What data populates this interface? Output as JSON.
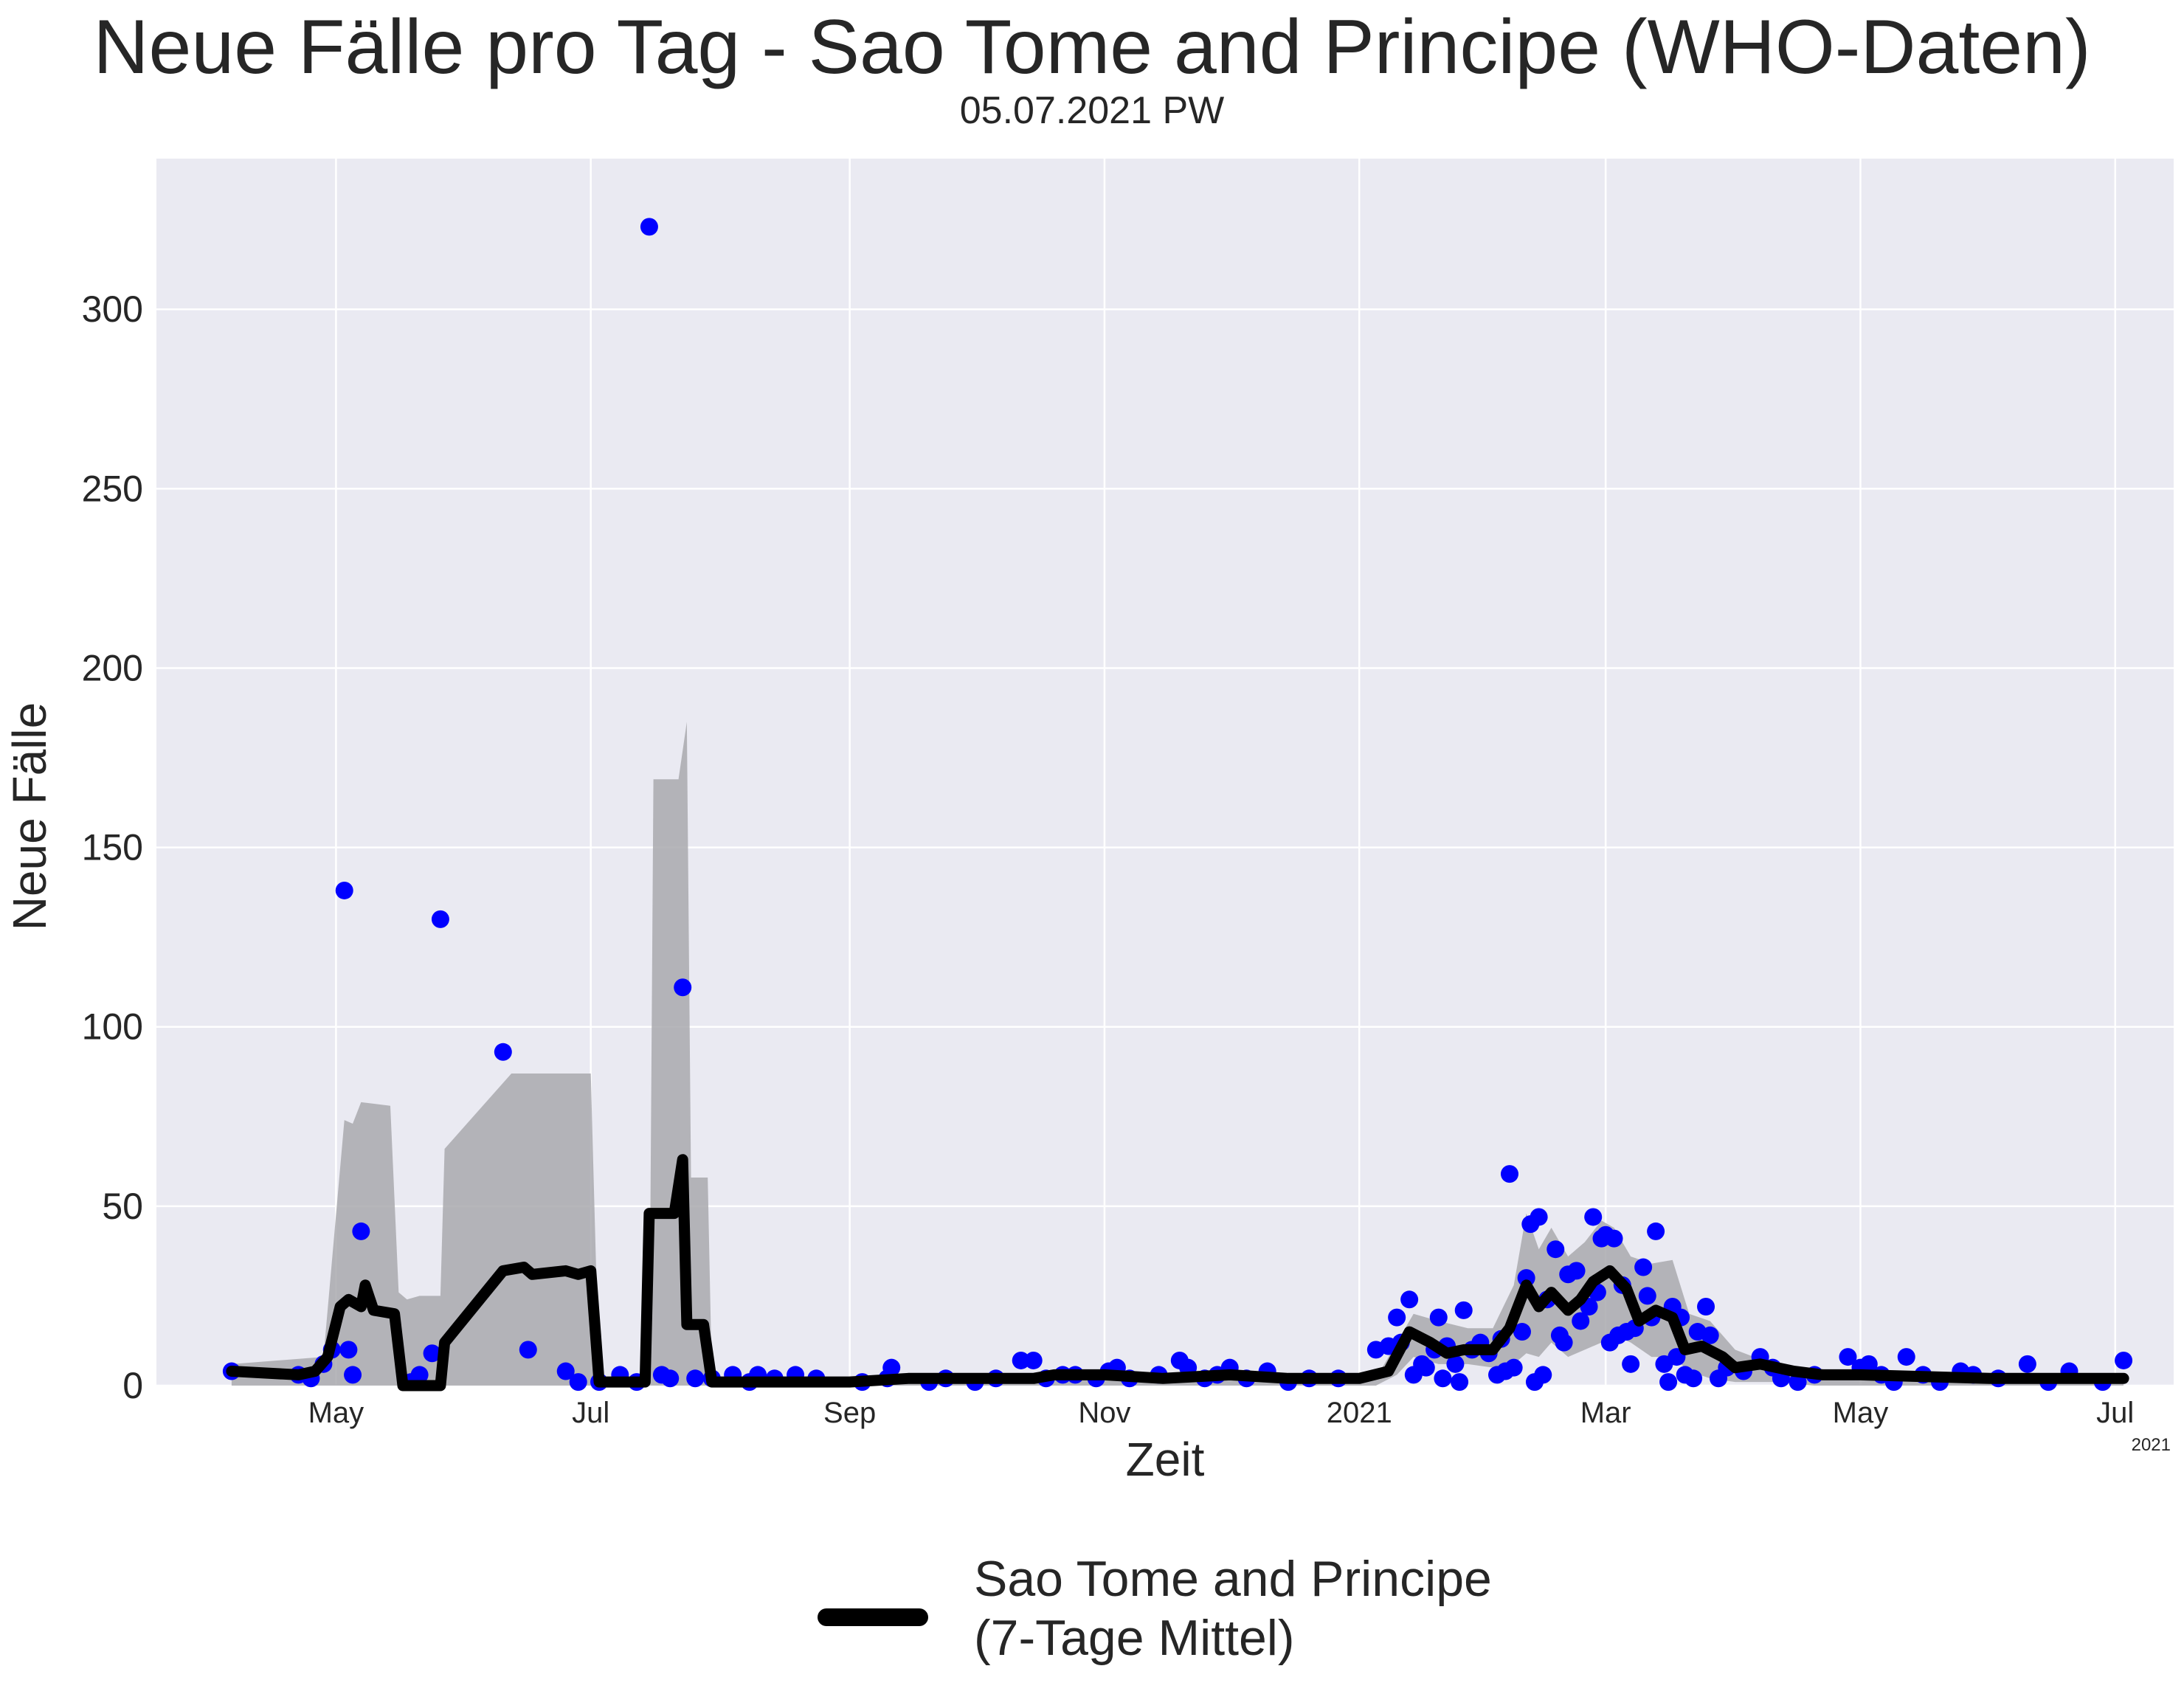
{
  "title": "Neue Fälle pro Tag - Sao Tome and Principe (WHO-Daten)",
  "subtitle": "05.07.2021 PW",
  "colors": {
    "plot_background": "#EAEAF2",
    "grid": "#FFFFFF",
    "points": "#0000FF",
    "line": "#000000",
    "band": "#A9A9AE"
  },
  "chart_data": {
    "type": "line",
    "title": "Neue Fälle pro Tag - Sao Tome and Principe (WHO-Daten)",
    "xlabel": "Zeit",
    "ylabel": "Neue Fälle",
    "x_range": [
      "2020-03-19",
      "2021-07-15"
    ],
    "ylim": [
      0,
      342
    ],
    "yticks": [
      0,
      50,
      100,
      150,
      200,
      250,
      300
    ],
    "xticks": [
      {
        "date": "2020-05-01",
        "label": "May"
      },
      {
        "date": "2020-07-01",
        "label": "Jul"
      },
      {
        "date": "2020-09-01",
        "label": "Sep"
      },
      {
        "date": "2020-11-01",
        "label": "Nov"
      },
      {
        "date": "2021-01-01",
        "label": "2021"
      },
      {
        "date": "2021-03-01",
        "label": "Mar"
      },
      {
        "date": "2021-05-01",
        "label": "May"
      },
      {
        "date": "2021-07-01",
        "label": "Jul"
      }
    ],
    "x_offset_label": "2021",
    "grid": true,
    "legend_position": "bottom-center",
    "series": [
      {
        "name": "Sao Tome and Principe\n(7-Tage Mittel)",
        "kind": "line",
        "points": [
          [
            "2020-04-06",
            4
          ],
          [
            "2020-04-22",
            3
          ],
          [
            "2020-04-26",
            4
          ],
          [
            "2020-04-29",
            8
          ],
          [
            "2020-05-02",
            22
          ],
          [
            "2020-05-04",
            24
          ],
          [
            "2020-05-07",
            22
          ],
          [
            "2020-05-08",
            28
          ],
          [
            "2020-05-10",
            21
          ],
          [
            "2020-05-15",
            20
          ],
          [
            "2020-05-17",
            0
          ],
          [
            "2020-05-26",
            0
          ],
          [
            "2020-05-27",
            12
          ],
          [
            "2020-06-10",
            32
          ],
          [
            "2020-06-15",
            33
          ],
          [
            "2020-06-17",
            31
          ],
          [
            "2020-06-25",
            32
          ],
          [
            "2020-06-28",
            31
          ],
          [
            "2020-07-01",
            32
          ],
          [
            "2020-07-03",
            1
          ],
          [
            "2020-07-14",
            1
          ],
          [
            "2020-07-15",
            48
          ],
          [
            "2020-07-21",
            48
          ],
          [
            "2020-07-23",
            63
          ],
          [
            "2020-07-24",
            17
          ],
          [
            "2020-07-28",
            17
          ],
          [
            "2020-07-30",
            1
          ],
          [
            "2020-09-01",
            1
          ],
          [
            "2020-09-15",
            2
          ],
          [
            "2020-10-15",
            2
          ],
          [
            "2020-10-20",
            3
          ],
          [
            "2020-11-01",
            3
          ],
          [
            "2020-11-15",
            2
          ],
          [
            "2020-12-01",
            3
          ],
          [
            "2020-12-15",
            2
          ],
          [
            "2021-01-01",
            2
          ],
          [
            "2021-01-08",
            4
          ],
          [
            "2021-01-13",
            15
          ],
          [
            "2021-01-18",
            12
          ],
          [
            "2021-01-22",
            9
          ],
          [
            "2021-01-26",
            10
          ],
          [
            "2021-02-02",
            10
          ],
          [
            "2021-02-06",
            16
          ],
          [
            "2021-02-10",
            28
          ],
          [
            "2021-02-13",
            22
          ],
          [
            "2021-02-16",
            26
          ],
          [
            "2021-02-20",
            21
          ],
          [
            "2021-02-23",
            24
          ],
          [
            "2021-02-26",
            29
          ],
          [
            "2021-03-02",
            32
          ],
          [
            "2021-03-06",
            27
          ],
          [
            "2021-03-09",
            18
          ],
          [
            "2021-03-13",
            21
          ],
          [
            "2021-03-17",
            19
          ],
          [
            "2021-03-20",
            10
          ],
          [
            "2021-03-24",
            11
          ],
          [
            "2021-03-29",
            8
          ],
          [
            "2021-04-01",
            5
          ],
          [
            "2021-04-07",
            6
          ],
          [
            "2021-04-15",
            4
          ],
          [
            "2021-04-22",
            3
          ],
          [
            "2021-05-01",
            3
          ],
          [
            "2021-06-01",
            2
          ],
          [
            "2021-06-15",
            2
          ],
          [
            "2021-07-03",
            2
          ]
        ]
      },
      {
        "name": "",
        "kind": "band",
        "points": [
          [
            "2020-04-06",
            0,
            6
          ],
          [
            "2020-04-28",
            0,
            8
          ],
          [
            "2020-05-03",
            0,
            74
          ],
          [
            "2020-05-05",
            0,
            73
          ],
          [
            "2020-05-07",
            0,
            79
          ],
          [
            "2020-05-14",
            0,
            78
          ],
          [
            "2020-05-16",
            0,
            26
          ],
          [
            "2020-05-18",
            0,
            24
          ],
          [
            "2020-05-21",
            0,
            25
          ],
          [
            "2020-05-26",
            0,
            25
          ],
          [
            "2020-05-27",
            0,
            66
          ],
          [
            "2020-06-12",
            0,
            87
          ],
          [
            "2020-06-18",
            0,
            87
          ],
          [
            "2020-06-30",
            0,
            87
          ],
          [
            "2020-07-01",
            0,
            87
          ],
          [
            "2020-07-03",
            0,
            2
          ],
          [
            "2020-07-15",
            0,
            2
          ],
          [
            "2020-07-16",
            0,
            169
          ],
          [
            "2020-07-22",
            0,
            169
          ],
          [
            "2020-07-24",
            0,
            185
          ],
          [
            "2020-07-25",
            0,
            58
          ],
          [
            "2020-07-29",
            0,
            58
          ],
          [
            "2020-07-30",
            0,
            2
          ],
          [
            "2021-01-05",
            0,
            2
          ],
          [
            "2021-01-10",
            3,
            12
          ],
          [
            "2021-01-14",
            8,
            20
          ],
          [
            "2021-01-20",
            6,
            18
          ],
          [
            "2021-01-27",
            6,
            16
          ],
          [
            "2021-02-02",
            5,
            16
          ],
          [
            "2021-02-07",
            6,
            28
          ],
          [
            "2021-02-10",
            9,
            48
          ],
          [
            "2021-02-13",
            8,
            38
          ],
          [
            "2021-02-16",
            12,
            44
          ],
          [
            "2021-02-20",
            8,
            36
          ],
          [
            "2021-02-24",
            10,
            40
          ],
          [
            "2021-02-28",
            12,
            46
          ],
          [
            "2021-03-03",
            14,
            44
          ],
          [
            "2021-03-07",
            12,
            36
          ],
          [
            "2021-03-12",
            8,
            34
          ],
          [
            "2021-03-17",
            8,
            35
          ],
          [
            "2021-03-21",
            4,
            20
          ],
          [
            "2021-03-26",
            2,
            18
          ],
          [
            "2021-04-01",
            1,
            10
          ],
          [
            "2021-04-10",
            1,
            6
          ],
          [
            "2021-04-20",
            0,
            4
          ],
          [
            "2021-07-03",
            0,
            3
          ]
        ]
      },
      {
        "name": "",
        "kind": "scatter",
        "points": [
          [
            "2020-04-06",
            4
          ],
          [
            "2020-04-22",
            3
          ],
          [
            "2020-04-25",
            2
          ],
          [
            "2020-04-28",
            6
          ],
          [
            "2020-04-30",
            10
          ],
          [
            "2020-05-03",
            138
          ],
          [
            "2020-05-04",
            10
          ],
          [
            "2020-05-05",
            3
          ],
          [
            "2020-05-07",
            43
          ],
          [
            "2020-05-19",
            1
          ],
          [
            "2020-05-21",
            3
          ],
          [
            "2020-05-24",
            9
          ],
          [
            "2020-05-26",
            130
          ],
          [
            "2020-06-10",
            93
          ],
          [
            "2020-06-16",
            10
          ],
          [
            "2020-06-25",
            4
          ],
          [
            "2020-06-28",
            1
          ],
          [
            "2020-07-03",
            1
          ],
          [
            "2020-07-08",
            3
          ],
          [
            "2020-07-12",
            1
          ],
          [
            "2020-07-15",
            323
          ],
          [
            "2020-07-18",
            3
          ],
          [
            "2020-07-20",
            2
          ],
          [
            "2020-07-23",
            111
          ],
          [
            "2020-07-26",
            2
          ],
          [
            "2020-07-30",
            2
          ],
          [
            "2020-08-04",
            3
          ],
          [
            "2020-08-08",
            1
          ],
          [
            "2020-08-10",
            3
          ],
          [
            "2020-08-14",
            2
          ],
          [
            "2020-08-19",
            3
          ],
          [
            "2020-08-24",
            2
          ],
          [
            "2020-09-04",
            1
          ],
          [
            "2020-09-10",
            2
          ],
          [
            "2020-09-11",
            5
          ],
          [
            "2020-09-20",
            1
          ],
          [
            "2020-09-24",
            2
          ],
          [
            "2020-10-01",
            1
          ],
          [
            "2020-10-06",
            2
          ],
          [
            "2020-10-12",
            7
          ],
          [
            "2020-10-15",
            7
          ],
          [
            "2020-10-18",
            2
          ],
          [
            "2020-10-22",
            3
          ],
          [
            "2020-10-25",
            3
          ],
          [
            "2020-10-30",
            2
          ],
          [
            "2020-11-02",
            4
          ],
          [
            "2020-11-04",
            5
          ],
          [
            "2020-11-07",
            2
          ],
          [
            "2020-11-14",
            3
          ],
          [
            "2020-11-19",
            7
          ],
          [
            "2020-11-21",
            5
          ],
          [
            "2020-11-25",
            2
          ],
          [
            "2020-11-28",
            3
          ],
          [
            "2020-12-01",
            5
          ],
          [
            "2020-12-05",
            2
          ],
          [
            "2020-12-10",
            4
          ],
          [
            "2020-12-15",
            1
          ],
          [
            "2020-12-20",
            2
          ],
          [
            "2020-12-27",
            2
          ],
          [
            "2021-01-05",
            10
          ],
          [
            "2021-01-08",
            11
          ],
          [
            "2021-01-10",
            19
          ],
          [
            "2021-01-11",
            12
          ],
          [
            "2021-01-13",
            24
          ],
          [
            "2021-01-14",
            3
          ],
          [
            "2021-01-16",
            6
          ],
          [
            "2021-01-17",
            5
          ],
          [
            "2021-01-19",
            10
          ],
          [
            "2021-01-20",
            19
          ],
          [
            "2021-01-21",
            2
          ],
          [
            "2021-01-22",
            11
          ],
          [
            "2021-01-24",
            6
          ],
          [
            "2021-01-25",
            1
          ],
          [
            "2021-01-26",
            21
          ],
          [
            "2021-01-28",
            10
          ],
          [
            "2021-01-30",
            12
          ],
          [
            "2021-02-01",
            9
          ],
          [
            "2021-02-03",
            3
          ],
          [
            "2021-02-04",
            13
          ],
          [
            "2021-02-05",
            4
          ],
          [
            "2021-02-06",
            59
          ],
          [
            "2021-02-07",
            5
          ],
          [
            "2021-02-09",
            15
          ],
          [
            "2021-02-10",
            30
          ],
          [
            "2021-02-11",
            45
          ],
          [
            "2021-02-12",
            1
          ],
          [
            "2021-02-13",
            47
          ],
          [
            "2021-02-14",
            3
          ],
          [
            "2021-02-15",
            24
          ],
          [
            "2021-02-17",
            38
          ],
          [
            "2021-02-18",
            14
          ],
          [
            "2021-02-19",
            12
          ],
          [
            "2021-02-20",
            31
          ],
          [
            "2021-02-22",
            32
          ],
          [
            "2021-02-23",
            18
          ],
          [
            "2021-02-25",
            22
          ],
          [
            "2021-02-26",
            47
          ],
          [
            "2021-02-27",
            26
          ],
          [
            "2021-02-28",
            41
          ],
          [
            "2021-03-01",
            42
          ],
          [
            "2021-03-02",
            12
          ],
          [
            "2021-03-03",
            41
          ],
          [
            "2021-03-04",
            14
          ],
          [
            "2021-03-05",
            28
          ],
          [
            "2021-03-06",
            15
          ],
          [
            "2021-03-07",
            6
          ],
          [
            "2021-03-08",
            16
          ],
          [
            "2021-03-10",
            33
          ],
          [
            "2021-03-11",
            25
          ],
          [
            "2021-03-12",
            19
          ],
          [
            "2021-03-13",
            43
          ],
          [
            "2021-03-15",
            6
          ],
          [
            "2021-03-16",
            1
          ],
          [
            "2021-03-17",
            22
          ],
          [
            "2021-03-18",
            8
          ],
          [
            "2021-03-19",
            19
          ],
          [
            "2021-03-20",
            3
          ],
          [
            "2021-03-22",
            2
          ],
          [
            "2021-03-23",
            15
          ],
          [
            "2021-03-25",
            22
          ],
          [
            "2021-03-26",
            14
          ],
          [
            "2021-03-28",
            2
          ],
          [
            "2021-03-30",
            5
          ],
          [
            "2021-04-03",
            4
          ],
          [
            "2021-04-07",
            8
          ],
          [
            "2021-04-10",
            5
          ],
          [
            "2021-04-12",
            2
          ],
          [
            "2021-04-16",
            1
          ],
          [
            "2021-04-20",
            3
          ],
          [
            "2021-04-28",
            8
          ],
          [
            "2021-05-01",
            5
          ],
          [
            "2021-05-03",
            6
          ],
          [
            "2021-05-06",
            3
          ],
          [
            "2021-05-09",
            1
          ],
          [
            "2021-05-12",
            8
          ],
          [
            "2021-05-16",
            3
          ],
          [
            "2021-05-20",
            1
          ],
          [
            "2021-05-25",
            4
          ],
          [
            "2021-05-28",
            3
          ],
          [
            "2021-06-03",
            2
          ],
          [
            "2021-06-10",
            6
          ],
          [
            "2021-06-15",
            1
          ],
          [
            "2021-06-20",
            4
          ],
          [
            "2021-06-28",
            1
          ],
          [
            "2021-07-03",
            7
          ]
        ]
      }
    ]
  }
}
